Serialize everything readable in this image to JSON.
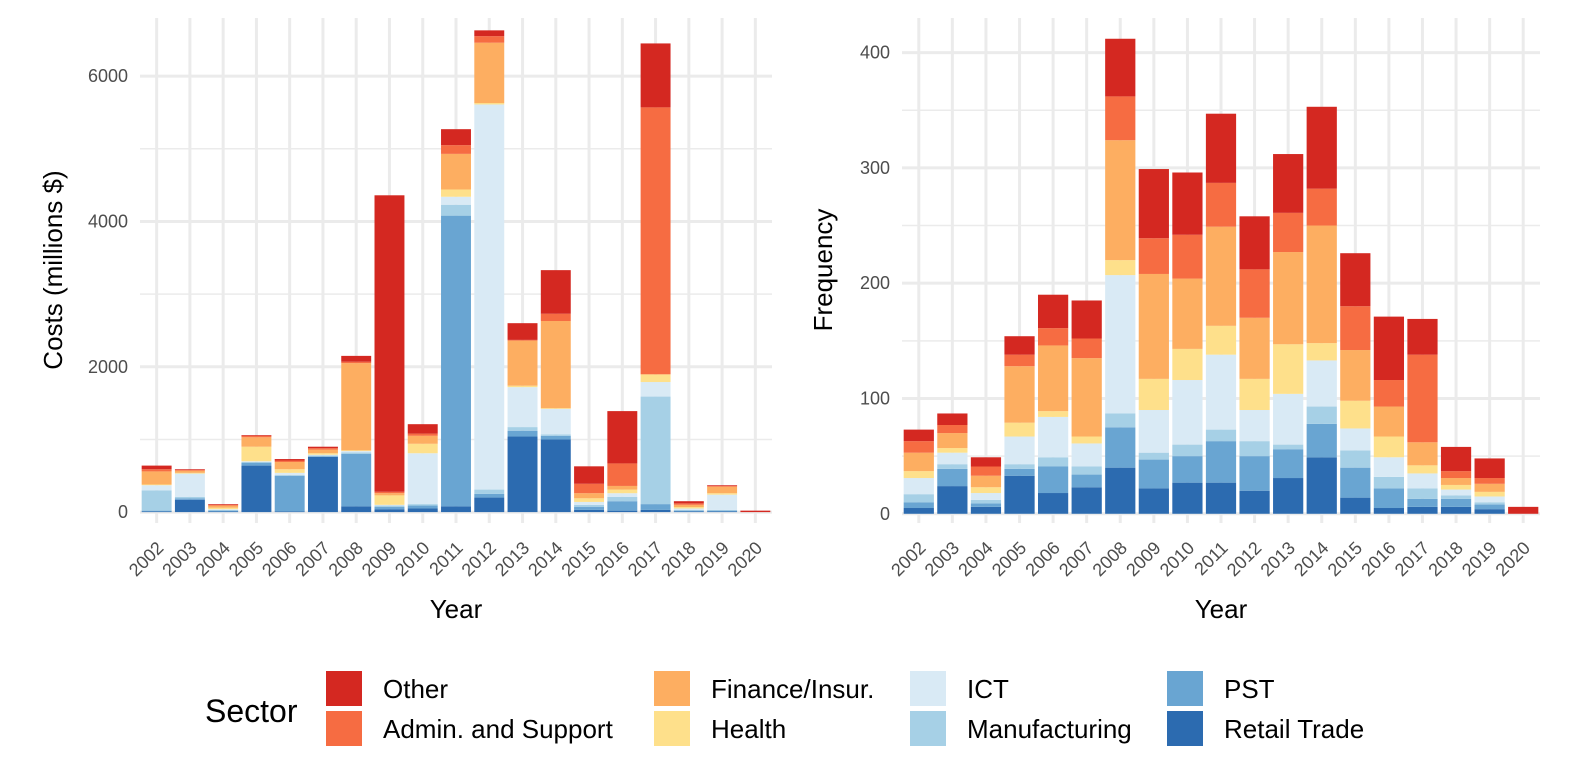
{
  "colors": {
    "Other": "#D42821",
    "Admin. and Support": "#F66C42",
    "Finance/Insur.": "#FDAE61",
    "Health": "#FEE08B",
    "ICT": "#D9EAF5",
    "Manufacturing": "#A6D0E6",
    "PST": "#69A5D2",
    "Retail Trade": "#2C6BB0"
  },
  "legend": {
    "title": "Sector",
    "items": [
      "Other",
      "Admin. and Support",
      "Finance/Insur.",
      "Health",
      "ICT",
      "Manufacturing",
      "PST",
      "Retail Trade"
    ]
  },
  "chart_data": [
    {
      "type": "bar",
      "stacked": true,
      "xlabel": "Year",
      "ylabel": "Costs (millions $)",
      "ylim": [
        -150,
        6800
      ],
      "yticks": [
        0,
        2000,
        4000,
        6000
      ],
      "grid": true,
      "legend_position": "bottom",
      "categories": [
        "2002",
        "2003",
        "2004",
        "2005",
        "2006",
        "2007",
        "2008",
        "2009",
        "2010",
        "2011",
        "2012",
        "2013",
        "2014",
        "2015",
        "2016",
        "2017",
        "2018",
        "2019",
        "2020"
      ],
      "series": [
        {
          "name": "Retail Trade",
          "values": [
            10,
            170,
            10,
            640,
            10,
            760,
            80,
            40,
            50,
            80,
            200,
            1040,
            1000,
            30,
            20,
            30,
            10,
            10,
            0
          ]
        },
        {
          "name": "PST",
          "values": [
            10,
            20,
            10,
            40,
            490,
            10,
            720,
            30,
            40,
            4000,
            50,
            80,
            50,
            40,
            130,
            80,
            10,
            10,
            0
          ]
        },
        {
          "name": "Manufacturing",
          "values": [
            280,
            20,
            10,
            10,
            10,
            10,
            20,
            20,
            20,
            150,
            60,
            50,
            20,
            30,
            60,
            1480,
            10,
            10,
            0
          ]
        },
        {
          "name": "ICT",
          "values": [
            70,
            320,
            10,
            10,
            30,
            10,
            20,
            10,
            700,
            110,
            5300,
            550,
            350,
            40,
            50,
            200,
            20,
            210,
            0
          ]
        },
        {
          "name": "Health",
          "values": [
            10,
            10,
            20,
            200,
            50,
            20,
            10,
            130,
            130,
            100,
            20,
            20,
            10,
            50,
            50,
            100,
            20,
            20,
            0
          ]
        },
        {
          "name": "Finance/Insur.",
          "values": [
            180,
            30,
            30,
            130,
            100,
            50,
            1200,
            30,
            110,
            490,
            830,
            620,
            1200,
            70,
            50,
            10,
            30,
            90,
            0
          ]
        },
        {
          "name": "Admin. and Support",
          "values": [
            30,
            10,
            10,
            20,
            20,
            20,
            20,
            20,
            30,
            120,
            90,
            10,
            100,
            130,
            310,
            3670,
            20,
            10,
            0
          ]
        },
        {
          "name": "Other",
          "values": [
            50,
            10,
            10,
            10,
            20,
            20,
            80,
            4080,
            130,
            220,
            80,
            230,
            600,
            240,
            720,
            880,
            30,
            10,
            20
          ]
        }
      ]
    },
    {
      "type": "bar",
      "stacked": true,
      "xlabel": "Year",
      "ylabel": "Frequency",
      "ylim": [
        -8,
        430
      ],
      "yticks": [
        0,
        100,
        200,
        300,
        400
      ],
      "grid": true,
      "legend_position": "bottom",
      "categories": [
        "2002",
        "2003",
        "2004",
        "2005",
        "2006",
        "2007",
        "2008",
        "2009",
        "2010",
        "2011",
        "2012",
        "2013",
        "2014",
        "2015",
        "2016",
        "2017",
        "2018",
        "2019",
        "2020"
      ],
      "series": [
        {
          "name": "Retail Trade",
          "values": [
            5,
            24,
            6,
            33,
            18,
            23,
            40,
            22,
            27,
            27,
            20,
            31,
            49,
            14,
            5,
            6,
            6,
            4,
            0
          ]
        },
        {
          "name": "PST",
          "values": [
            5,
            15,
            3,
            6,
            23,
            11,
            35,
            25,
            23,
            36,
            30,
            25,
            29,
            26,
            17,
            7,
            7,
            4,
            0
          ]
        },
        {
          "name": "Manufacturing",
          "values": [
            7,
            4,
            3,
            4,
            8,
            7,
            12,
            6,
            10,
            10,
            13,
            4,
            15,
            15,
            10,
            9,
            3,
            2,
            0
          ]
        },
        {
          "name": "ICT",
          "values": [
            14,
            10,
            6,
            24,
            35,
            20,
            120,
            37,
            56,
            65,
            27,
            44,
            40,
            19,
            17,
            13,
            5,
            5,
            0
          ]
        },
        {
          "name": "Health",
          "values": [
            6,
            4,
            5,
            12,
            5,
            6,
            13,
            27,
            27,
            25,
            27,
            43,
            15,
            24,
            18,
            7,
            4,
            4,
            0
          ]
        },
        {
          "name": "Finance/Insur.",
          "values": [
            16,
            13,
            10,
            49,
            57,
            68,
            104,
            91,
            61,
            86,
            53,
            80,
            102,
            44,
            26,
            20,
            6,
            7,
            0
          ]
        },
        {
          "name": "Admin. and Support",
          "values": [
            10,
            7,
            8,
            10,
            15,
            17,
            38,
            31,
            38,
            38,
            42,
            34,
            32,
            38,
            23,
            76,
            6,
            5,
            0
          ]
        },
        {
          "name": "Other",
          "values": [
            10,
            10,
            8,
            16,
            29,
            33,
            50,
            60,
            54,
            60,
            46,
            51,
            71,
            46,
            55,
            31,
            21,
            17,
            6
          ]
        }
      ]
    }
  ]
}
